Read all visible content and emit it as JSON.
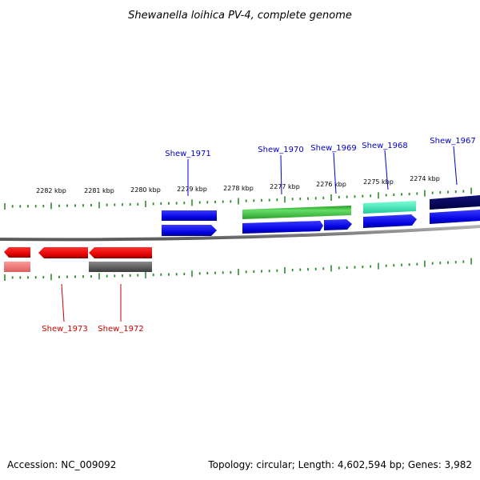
{
  "title": "Shewanella loihica PV-4, complete genome",
  "footer": {
    "accession": "Accession: NC_009092",
    "topology": "Topology: circular; Length: 4,602,594 bp; Genes: 3,982"
  },
  "colors": {
    "backbone": "#8c8c8c",
    "tick": "#2e8b2e",
    "kbp_label": "#000000",
    "plus_label": "#0000cc",
    "minus_label": "#cc0000"
  },
  "ruler": {
    "unit": "kbp",
    "ticks": [
      {
        "kbp": 2282,
        "label": "2282 kbp"
      },
      {
        "kbp": 2281,
        "label": "2281 kbp"
      },
      {
        "kbp": 2280,
        "label": "2280 kbp"
      },
      {
        "kbp": 2279,
        "label": "2279 kbp"
      },
      {
        "kbp": 2278,
        "label": "2278 kbp"
      },
      {
        "kbp": 2277,
        "label": "2277 kbp"
      },
      {
        "kbp": 2276,
        "label": "2276 kbp"
      },
      {
        "kbp": 2275,
        "label": "2275 kbp"
      },
      {
        "kbp": 2274,
        "label": "2274 kbp"
      }
    ]
  },
  "genes": [
    {
      "name": "Shew_1967",
      "labelled": true
    },
    {
      "name": "Shew_1968",
      "labelled": true
    },
    {
      "name": "Shew_1969",
      "labelled": true
    },
    {
      "name": "Shew_1970",
      "labelled": true
    },
    {
      "name": "Shew_1971",
      "labelled": true
    },
    {
      "name": "Shew_1972",
      "labelled": true
    },
    {
      "name": "Shew_1973",
      "labelled": true
    }
  ]
}
